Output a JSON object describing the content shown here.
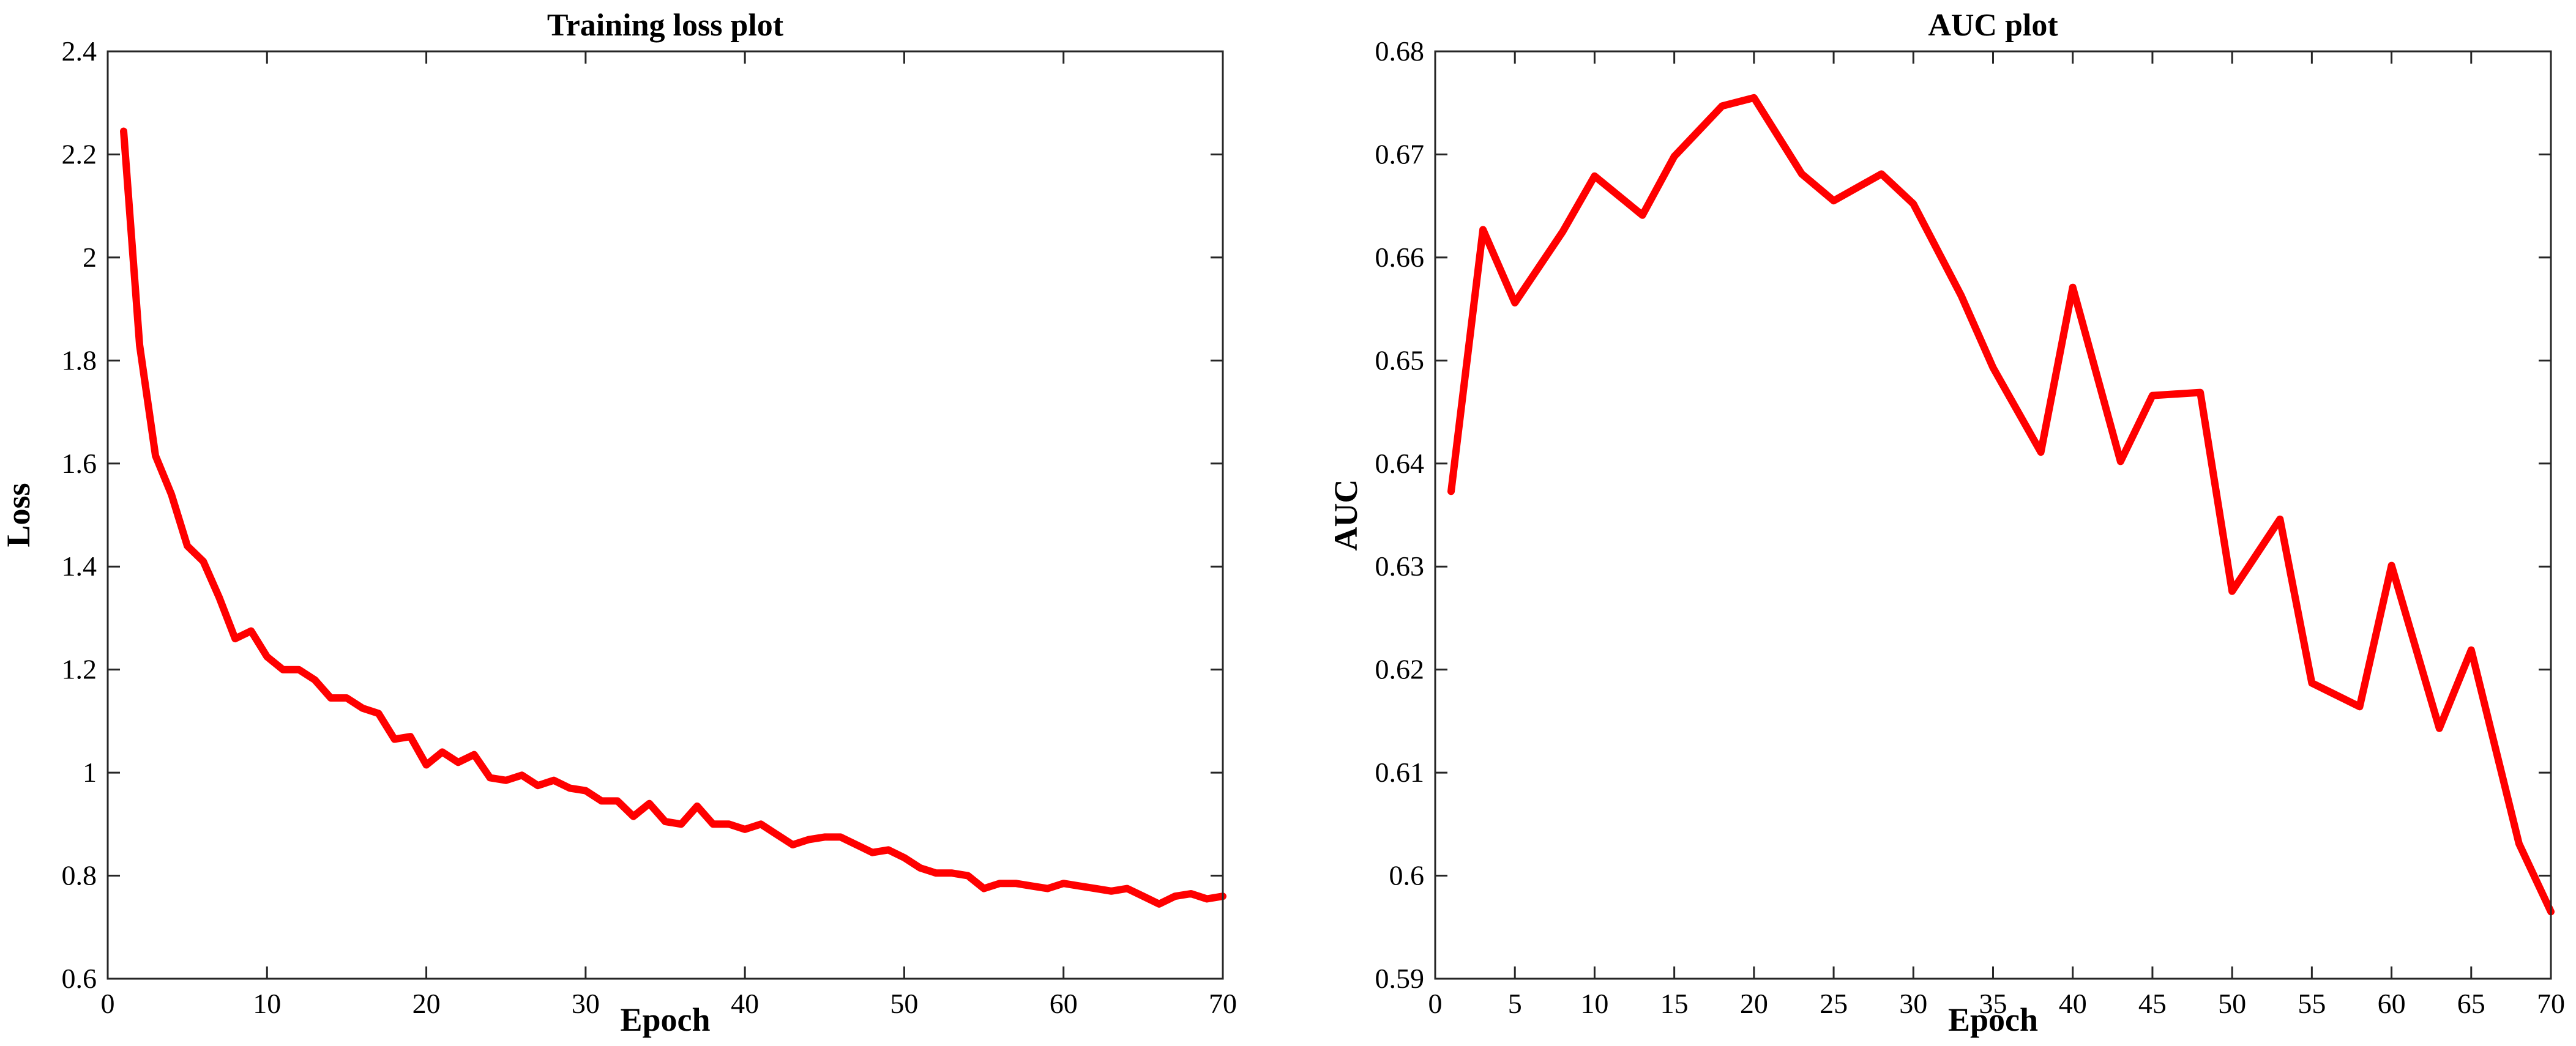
{
  "chart_data": [
    {
      "type": "line",
      "title": "Training loss plot",
      "xlabel": "Epoch",
      "ylabel": "Loss",
      "xlim": [
        0,
        70
      ],
      "ylim": [
        0.6,
        2.4
      ],
      "xticks": [
        0,
        10,
        20,
        30,
        40,
        50,
        60,
        70
      ],
      "xtick_labels": [
        "0",
        "10",
        "20",
        "30",
        "40",
        "50",
        "60",
        "70"
      ],
      "yticks": [
        0.6,
        0.8,
        1.0,
        1.2,
        1.4,
        1.6,
        1.8,
        2.0,
        2.2,
        2.4
      ],
      "ytick_labels": [
        "0.6",
        "0.8",
        "1",
        "1.2",
        "1.4",
        "1.6",
        "1.8",
        "2",
        "2.2",
        "2.4"
      ],
      "grid": false,
      "series": [
        {
          "color": "#ff0000",
          "x": [
            1,
            2,
            3,
            4,
            5,
            6,
            7,
            8,
            9,
            10,
            11,
            12,
            13,
            14,
            15,
            16,
            17,
            18,
            19,
            20,
            21,
            22,
            23,
            24,
            25,
            26,
            27,
            28,
            29,
            30,
            31,
            32,
            33,
            34,
            35,
            36,
            37,
            38,
            39,
            40,
            41,
            42,
            43,
            44,
            45,
            46,
            47,
            48,
            49,
            50,
            51,
            52,
            53,
            54,
            55,
            56,
            57,
            58,
            59,
            60,
            61,
            62,
            63,
            64,
            65,
            66,
            67,
            68,
            69,
            70
          ],
          "y": [
            2.245,
            1.83,
            1.615,
            1.54,
            1.44,
            1.41,
            1.34,
            1.26,
            1.275,
            1.225,
            1.2,
            1.2,
            1.18,
            1.145,
            1.145,
            1.125,
            1.115,
            1.065,
            1.07,
            1.015,
            1.04,
            1.02,
            1.035,
            0.99,
            0.985,
            0.995,
            0.975,
            0.985,
            0.97,
            0.965,
            0.945,
            0.945,
            0.915,
            0.94,
            0.905,
            0.9,
            0.935,
            0.9,
            0.9,
            0.89,
            0.9,
            0.88,
            0.86,
            0.87,
            0.875,
            0.875,
            0.86,
            0.845,
            0.85,
            0.835,
            0.815,
            0.805,
            0.805,
            0.8,
            0.775,
            0.785,
            0.785,
            0.78,
            0.775,
            0.785,
            0.78,
            0.775,
            0.77,
            0.775,
            0.76,
            0.745,
            0.76,
            0.765,
            0.755,
            0.76
          ]
        }
      ]
    },
    {
      "type": "line",
      "title": "AUC plot",
      "xlabel": "Epoch",
      "ylabel": "AUC",
      "xlim": [
        0,
        70
      ],
      "ylim": [
        0.59,
        0.68
      ],
      "xticks": [
        0,
        5,
        10,
        15,
        20,
        25,
        30,
        35,
        40,
        45,
        50,
        55,
        60,
        65,
        70
      ],
      "xtick_labels": [
        "0",
        "5",
        "10",
        "15",
        "20",
        "25",
        "30",
        "35",
        "40",
        "45",
        "50",
        "55",
        "60",
        "65",
        "70"
      ],
      "yticks": [
        0.59,
        0.6,
        0.61,
        0.62,
        0.63,
        0.64,
        0.65,
        0.66,
        0.67,
        0.68
      ],
      "ytick_labels": [
        "0.59",
        "0.6",
        "0.61",
        "0.62",
        "0.63",
        "0.64",
        "0.65",
        "0.66",
        "0.67",
        "0.68"
      ],
      "grid": false,
      "series": [
        {
          "color": "#ff0000",
          "x": [
            1,
            3,
            5,
            8,
            10,
            13,
            15,
            18,
            20,
            23,
            25,
            28,
            30,
            33,
            35,
            38,
            40,
            43,
            45,
            48,
            50,
            53,
            55,
            58,
            60,
            63,
            65,
            68,
            70
          ],
          "y": [
            0.6373,
            0.6627,
            0.6556,
            0.6625,
            0.6679,
            0.6641,
            0.6698,
            0.6747,
            0.6755,
            0.6681,
            0.6655,
            0.6681,
            0.6652,
            0.6563,
            0.6493,
            0.6411,
            0.6571,
            0.6402,
            0.6466,
            0.6469,
            0.6276,
            0.6346,
            0.6187,
            0.6164,
            0.6301,
            0.6143,
            0.6219,
            0.6031,
            0.5965
          ]
        }
      ]
    }
  ]
}
